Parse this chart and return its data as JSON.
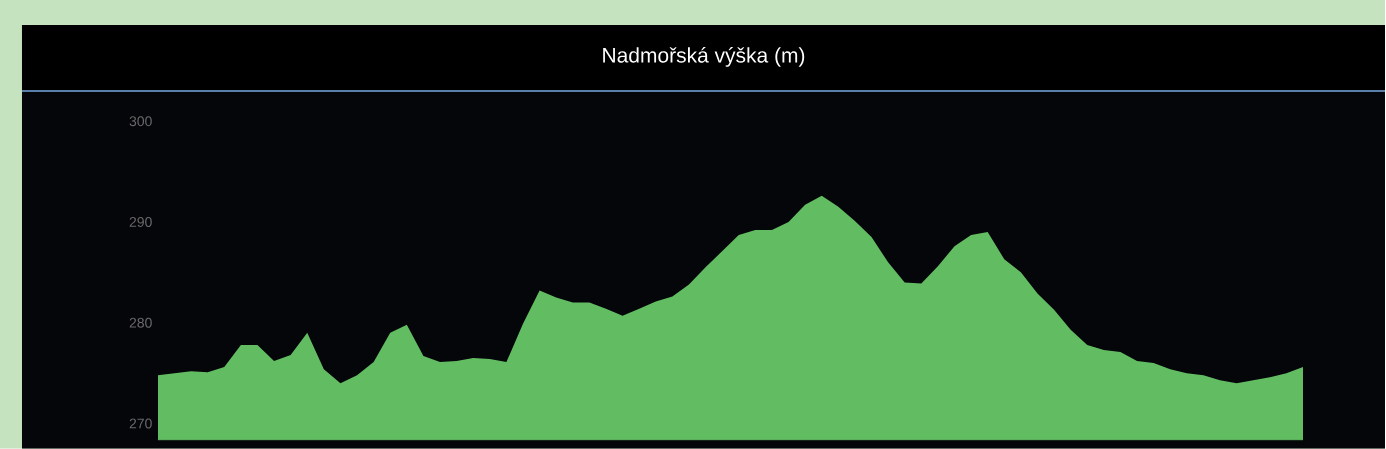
{
  "chart_data": {
    "type": "area",
    "title": "Nadmořská výška (m)",
    "categories": [
      null,
      null,
      null,
      null,
      null,
      null,
      null,
      null,
      null,
      null,
      null,
      null,
      null,
      null,
      null,
      null,
      null,
      null,
      null,
      null,
      null,
      null,
      null,
      null,
      null,
      null,
      null,
      null,
      null,
      null,
      null,
      null,
      null,
      null,
      null,
      null,
      null,
      null,
      null,
      null,
      null,
      null,
      null,
      null,
      null,
      null,
      null,
      null,
      null,
      null,
      null,
      null,
      null,
      null,
      null,
      null,
      null,
      null,
      null,
      null,
      null,
      null,
      null,
      null,
      null,
      null,
      null,
      null,
      null,
      null
    ],
    "values": [
      274.8,
      275.0,
      275.2,
      275.1,
      275.6,
      277.8,
      277.8,
      276.2,
      276.8,
      279.0,
      275.4,
      274.0,
      274.8,
      276.1,
      279.0,
      279.8,
      276.7,
      276.1,
      276.2,
      276.5,
      276.4,
      276.1,
      279.9,
      283.2,
      282.5,
      282.0,
      282.0,
      281.4,
      280.7,
      281.4,
      282.1,
      282.6,
      283.8,
      285.5,
      287.1,
      288.7,
      289.2,
      289.2,
      290.0,
      291.7,
      292.6,
      291.5,
      290.1,
      288.5,
      286.0,
      284.0,
      283.9,
      285.6,
      287.6,
      288.7,
      289.0,
      286.3,
      285.0,
      282.9,
      281.3,
      279.3,
      277.8,
      277.3,
      277.1,
      276.2,
      276.0,
      275.4,
      275.0,
      274.8,
      274.3,
      274.0,
      274.3,
      274.6,
      275.0,
      275.6
    ],
    "color": "#62bd62",
    "ylim": [
      268.4,
      303
    ],
    "yticks": [
      270,
      280,
      290,
      300
    ],
    "tick_labels": "y"
  }
}
